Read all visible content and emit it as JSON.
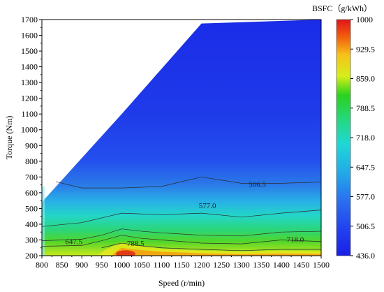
{
  "chart_data": {
    "type": "heatmap",
    "title": "",
    "xlabel": "Speed (r/min)",
    "ylabel": "Torque (Nm)",
    "xlim": [
      800,
      1500
    ],
    "ylim": [
      200,
      1700
    ],
    "x_ticks": [
      "800",
      "850",
      "900",
      "950",
      "1000",
      "1050",
      "1100",
      "1150",
      "1200",
      "1250",
      "1300",
      "1350",
      "1400",
      "1450",
      "1500"
    ],
    "y_ticks": [
      "200",
      "300",
      "400",
      "500",
      "600",
      "700",
      "800",
      "900",
      "1000",
      "1100",
      "1200",
      "1300",
      "1400",
      "1500",
      "1600",
      "1700"
    ],
    "colorbar": {
      "title": "BSFC（g/kWh）",
      "ticks": [
        "1000",
        "929.5",
        "859.0",
        "788.5",
        "718.0",
        "647.5",
        "577.0",
        "506.5",
        "436.0"
      ],
      "range": [
        436.0,
        1000
      ]
    },
    "contour_labels": [
      {
        "text": "506.5",
        "x": 1340,
        "y": 655
      },
      {
        "text": "577.0",
        "x": 1215,
        "y": 520
      },
      {
        "text": "647.5",
        "x": 880,
        "y": 290
      },
      {
        "text": "788.5",
        "x": 1035,
        "y": 280
      },
      {
        "text": "718.0",
        "x": 1435,
        "y": 305
      }
    ],
    "boundary": [
      [
        800,
        540
      ],
      [
        1000,
        1100
      ],
      [
        1200,
        1675
      ],
      [
        1500,
        1700
      ]
    ],
    "contour_lines": [
      {
        "level": 506.5,
        "points": [
          [
            835,
            670
          ],
          [
            900,
            630
          ],
          [
            1000,
            630
          ],
          [
            1100,
            640
          ],
          [
            1200,
            700
          ],
          [
            1300,
            660
          ],
          [
            1400,
            660
          ],
          [
            1500,
            668
          ]
        ]
      },
      {
        "level": 577.0,
        "points": [
          [
            800,
            385
          ],
          [
            900,
            410
          ],
          [
            950,
            440
          ],
          [
            1000,
            470
          ],
          [
            1050,
            465
          ],
          [
            1100,
            460
          ],
          [
            1200,
            470
          ],
          [
            1300,
            445
          ],
          [
            1400,
            470
          ],
          [
            1500,
            490
          ]
        ]
      },
      {
        "level": 647.5,
        "points": [
          [
            800,
            295
          ],
          [
            900,
            305
          ],
          [
            950,
            330
          ],
          [
            1000,
            370
          ],
          [
            1050,
            355
          ],
          [
            1100,
            345
          ],
          [
            1200,
            330
          ],
          [
            1300,
            325
          ],
          [
            1400,
            350
          ],
          [
            1500,
            355
          ]
        ]
      },
      {
        "level": 718.0,
        "points": [
          [
            800,
            260
          ],
          [
            900,
            265
          ],
          [
            950,
            295
          ],
          [
            1000,
            330
          ],
          [
            1050,
            310
          ],
          [
            1100,
            300
          ],
          [
            1200,
            280
          ],
          [
            1300,
            275
          ],
          [
            1400,
            300
          ],
          [
            1500,
            290
          ]
        ]
      },
      {
        "level": 788.5,
        "points": [
          [
            950,
            250
          ],
          [
            1000,
            280
          ],
          [
            1050,
            262
          ],
          [
            1100,
            250
          ],
          [
            1200,
            240
          ],
          [
            1300,
            232
          ],
          [
            1400,
            240
          ],
          [
            1500,
            240
          ]
        ]
      }
    ],
    "grid": false
  }
}
